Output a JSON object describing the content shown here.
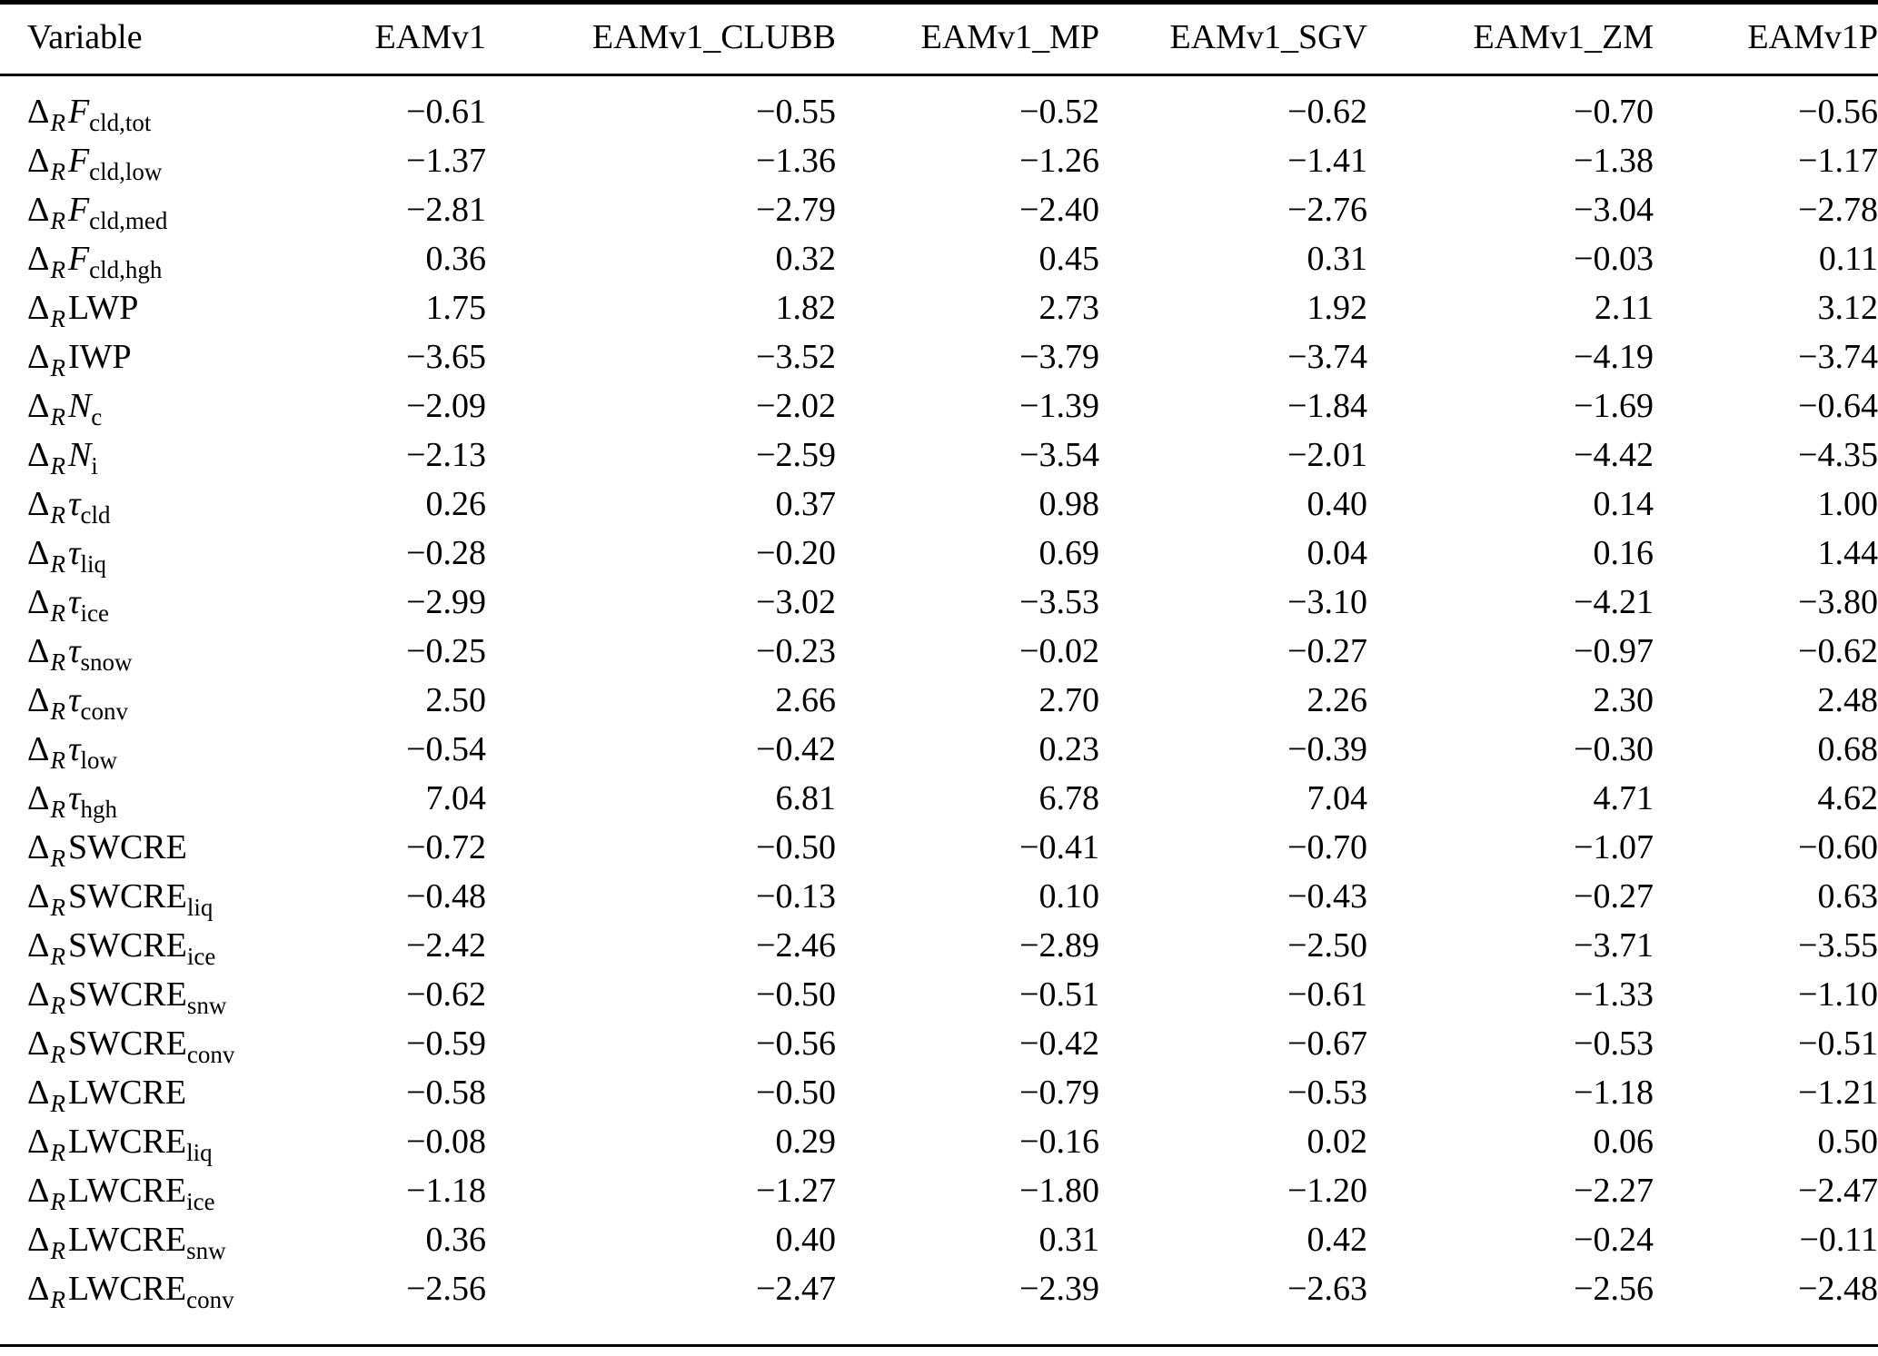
{
  "table": {
    "delta": {
      "symbol": "Δ",
      "subscript": "R"
    },
    "columns": [
      "Variable",
      "EAMv1",
      "EAMv1_CLUBB",
      "EAMv1_MP",
      "EAMv1_SGV",
      "EAMv1_ZM",
      "EAMv1P"
    ],
    "rows": [
      {
        "sym": "F",
        "italic": true,
        "sub": "cld,tot",
        "values": [
          "−0.61",
          "−0.55",
          "−0.52",
          "−0.62",
          "−0.70",
          "−0.56"
        ]
      },
      {
        "sym": "F",
        "italic": true,
        "sub": "cld,low",
        "values": [
          "−1.37",
          "−1.36",
          "−1.26",
          "−1.41",
          "−1.38",
          "−1.17"
        ]
      },
      {
        "sym": "F",
        "italic": true,
        "sub": "cld,med",
        "values": [
          "−2.81",
          "−2.79",
          "−2.40",
          "−2.76",
          "−3.04",
          "−2.78"
        ]
      },
      {
        "sym": "F",
        "italic": true,
        "sub": "cld,hgh",
        "values": [
          "0.36",
          "0.32",
          "0.45",
          "0.31",
          "−0.03",
          "0.11"
        ]
      },
      {
        "sym": "LWP",
        "italic": false,
        "sub": "",
        "values": [
          "1.75",
          "1.82",
          "2.73",
          "1.92",
          "2.11",
          "3.12"
        ]
      },
      {
        "sym": "IWP",
        "italic": false,
        "sub": "",
        "values": [
          "−3.65",
          "−3.52",
          "−3.79",
          "−3.74",
          "−4.19",
          "−3.74"
        ]
      },
      {
        "sym": "N",
        "italic": true,
        "sub": "c",
        "values": [
          "−2.09",
          "−2.02",
          "−1.39",
          "−1.84",
          "−1.69",
          "−0.64"
        ]
      },
      {
        "sym": "N",
        "italic": true,
        "sub": "i",
        "values": [
          "−2.13",
          "−2.59",
          "−3.54",
          "−2.01",
          "−4.42",
          "−4.35"
        ]
      },
      {
        "sym": "τ",
        "italic": true,
        "sub": "cld",
        "values": [
          "0.26",
          "0.37",
          "0.98",
          "0.40",
          "0.14",
          "1.00"
        ]
      },
      {
        "sym": "τ",
        "italic": true,
        "sub": "liq",
        "values": [
          "−0.28",
          "−0.20",
          "0.69",
          "0.04",
          "0.16",
          "1.44"
        ]
      },
      {
        "sym": "τ",
        "italic": true,
        "sub": "ice",
        "values": [
          "−2.99",
          "−3.02",
          "−3.53",
          "−3.10",
          "−4.21",
          "−3.80"
        ]
      },
      {
        "sym": "τ",
        "italic": true,
        "sub": "snow",
        "values": [
          "−0.25",
          "−0.23",
          "−0.02",
          "−0.27",
          "−0.97",
          "−0.62"
        ]
      },
      {
        "sym": "τ",
        "italic": true,
        "sub": "conv",
        "values": [
          "2.50",
          "2.66",
          "2.70",
          "2.26",
          "2.30",
          "2.48"
        ]
      },
      {
        "sym": "τ",
        "italic": true,
        "sub": "low",
        "values": [
          "−0.54",
          "−0.42",
          "0.23",
          "−0.39",
          "−0.30",
          "0.68"
        ]
      },
      {
        "sym": "τ",
        "italic": true,
        "sub": "hgh",
        "values": [
          "7.04",
          "6.81",
          "6.78",
          "7.04",
          "4.71",
          "4.62"
        ]
      },
      {
        "sym": "SWCRE",
        "italic": false,
        "sub": "",
        "values": [
          "−0.72",
          "−0.50",
          "−0.41",
          "−0.70",
          "−1.07",
          "−0.60"
        ]
      },
      {
        "sym": "SWCRE",
        "italic": false,
        "sub": "liq",
        "values": [
          "−0.48",
          "−0.13",
          "0.10",
          "−0.43",
          "−0.27",
          "0.63"
        ]
      },
      {
        "sym": "SWCRE",
        "italic": false,
        "sub": "ice",
        "values": [
          "−2.42",
          "−2.46",
          "−2.89",
          "−2.50",
          "−3.71",
          "−3.55"
        ]
      },
      {
        "sym": "SWCRE",
        "italic": false,
        "sub": "snw",
        "values": [
          "−0.62",
          "−0.50",
          "−0.51",
          "−0.61",
          "−1.33",
          "−1.10"
        ]
      },
      {
        "sym": "SWCRE",
        "italic": false,
        "sub": "conv",
        "values": [
          "−0.59",
          "−0.56",
          "−0.42",
          "−0.67",
          "−0.53",
          "−0.51"
        ]
      },
      {
        "sym": "LWCRE",
        "italic": false,
        "sub": "",
        "values": [
          "−0.58",
          "−0.50",
          "−0.79",
          "−0.53",
          "−1.18",
          "−1.21"
        ]
      },
      {
        "sym": "LWCRE",
        "italic": false,
        "sub": "liq",
        "values": [
          "−0.08",
          "0.29",
          "−0.16",
          "0.02",
          "0.06",
          "0.50"
        ]
      },
      {
        "sym": "LWCRE",
        "italic": false,
        "sub": "ice",
        "values": [
          "−1.18",
          "−1.27",
          "−1.80",
          "−1.20",
          "−2.27",
          "−2.47"
        ]
      },
      {
        "sym": "LWCRE",
        "italic": false,
        "sub": "snw",
        "values": [
          "0.36",
          "0.40",
          "0.31",
          "0.42",
          "−0.24",
          "−0.11"
        ]
      },
      {
        "sym": "LWCRE",
        "italic": false,
        "sub": "conv",
        "values": [
          "−2.56",
          "−2.47",
          "−2.39",
          "−2.63",
          "−2.56",
          "−2.48"
        ]
      }
    ]
  }
}
